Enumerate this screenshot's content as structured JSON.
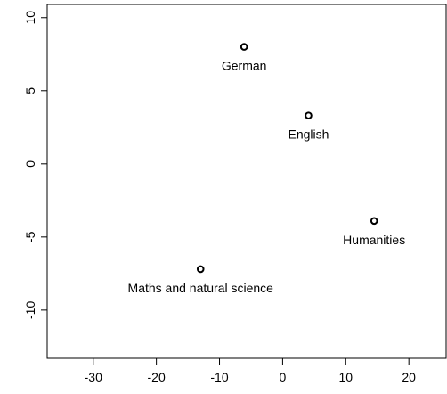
{
  "chart_data": {
    "type": "scatter",
    "x": [
      -6.1,
      4.1,
      14.5,
      -13.0
    ],
    "y": [
      8.0,
      3.3,
      -3.9,
      -7.2
    ],
    "labels": [
      "German",
      "English",
      "Humanities",
      "Maths and natural science"
    ],
    "color": "#000000",
    "xlim": [
      -37.3,
      25.9
    ],
    "xticks": [
      -30,
      -20,
      -10,
      0,
      10,
      20
    ],
    "ylim": [
      -13.3,
      10.9
    ],
    "yticks": [
      -10,
      -5,
      0,
      5,
      10
    ]
  }
}
